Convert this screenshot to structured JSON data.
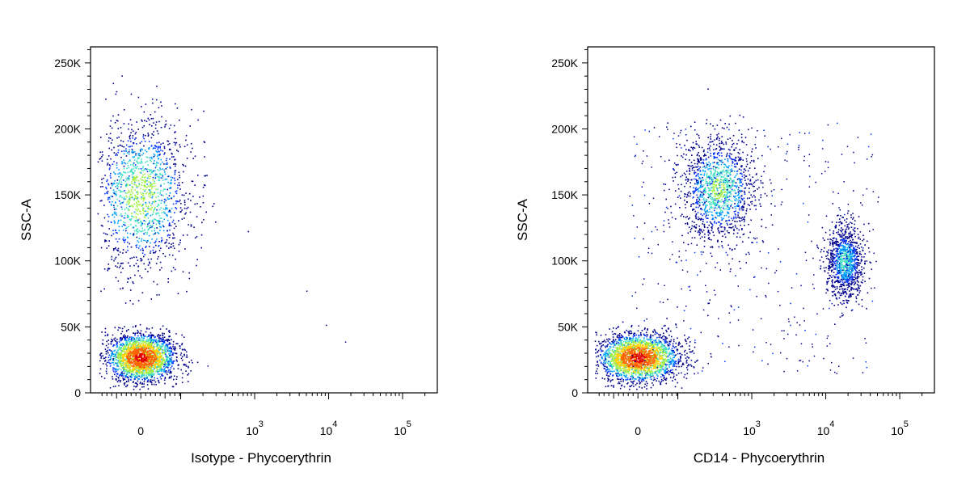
{
  "chart_data": [
    {
      "type": "scatter",
      "title": "",
      "xlabel": "Isotype - Phycoerythrin",
      "ylabel": "SSC-A",
      "x_scale": "biexponential",
      "ylim": [
        0,
        262144
      ],
      "grid": false,
      "y_ticks": [
        {
          "value": 0,
          "label": "0"
        },
        {
          "value": 50000,
          "label": "50K"
        },
        {
          "value": 100000,
          "label": "100K"
        },
        {
          "value": 150000,
          "label": "150K"
        },
        {
          "value": 200000,
          "label": "200K"
        },
        {
          "value": 250000,
          "label": "250K"
        }
      ],
      "x_ticks": [
        {
          "value": 0,
          "label": "0",
          "exp": ""
        },
        {
          "value": 1000,
          "label": "10",
          "exp": "3"
        },
        {
          "value": 10000,
          "label": "10",
          "exp": "4"
        },
        {
          "value": 100000,
          "label": "10",
          "exp": "5"
        }
      ],
      "populations": [
        {
          "name": "",
          "x_center": 0,
          "x_spread": 0.11,
          "y_center": 27000,
          "y_spread": 9000,
          "density": 0.9
        },
        {
          "name": "",
          "x_center": 0,
          "x_spread": 0.16,
          "y_center": 150000,
          "y_spread": 30000,
          "density": 0.55
        }
      ]
    },
    {
      "type": "scatter",
      "title": "",
      "xlabel": "CD14 - Phycoerythrin",
      "ylabel": "SSC-A",
      "x_scale": "biexponential",
      "ylim": [
        0,
        262144
      ],
      "grid": false,
      "y_ticks": [
        {
          "value": 0,
          "label": "0"
        },
        {
          "value": 50000,
          "label": "50K"
        },
        {
          "value": 100000,
          "label": "100K"
        },
        {
          "value": 150000,
          "label": "150K"
        },
        {
          "value": 200000,
          "label": "200K"
        },
        {
          "value": 250000,
          "label": "250K"
        }
      ],
      "x_ticks": [
        {
          "value": 0,
          "label": "0",
          "exp": ""
        },
        {
          "value": 1000,
          "label": "10",
          "exp": "3"
        },
        {
          "value": 10000,
          "label": "10",
          "exp": "4"
        },
        {
          "value": 100000,
          "label": "10",
          "exp": "5"
        }
      ],
      "populations": [
        {
          "name": "",
          "x_center": 0,
          "x_spread": 0.13,
          "y_center": 27000,
          "y_spread": 9000,
          "density": 0.9
        },
        {
          "name": "",
          "x_center": 350,
          "x_spread": 0.12,
          "y_center": 155000,
          "y_spread": 20000,
          "density": 0.5
        },
        {
          "name": "",
          "x_center": 18000,
          "x_spread": 0.06,
          "y_center": 100000,
          "y_spread": 14000,
          "density": 0.4
        }
      ]
    }
  ],
  "palette": [
    "#00008b",
    "#0030ff",
    "#00a0ff",
    "#40e0c0",
    "#a0f040",
    "#ffd000",
    "#ff6000",
    "#e00000"
  ]
}
